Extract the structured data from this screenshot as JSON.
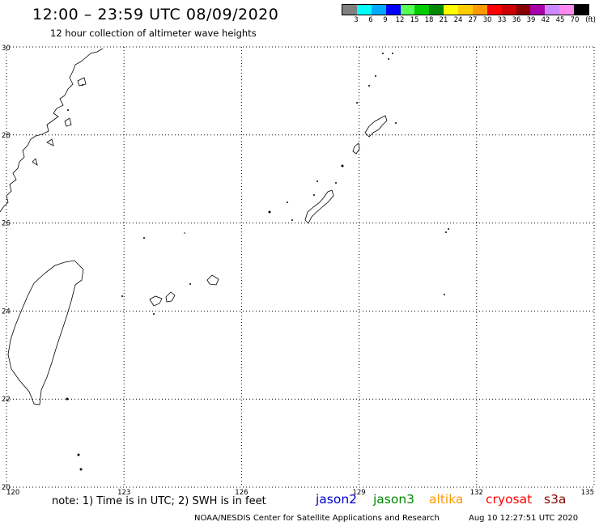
{
  "title": "12:00 – 23:59 UTC 08/09/2020",
  "subtitle": "12 hour collection of altimeter wave heights",
  "legend": {
    "colors": [
      "#808080",
      "#00ffff",
      "#00aaff",
      "#0000ff",
      "#55ff55",
      "#00cc00",
      "#008800",
      "#ffff00",
      "#ffcc00",
      "#ff9900",
      "#ff0000",
      "#cc0000",
      "#880000",
      "#aa00aa",
      "#cc88ff",
      "#ff88ee",
      "#000000"
    ],
    "labels": [
      "3",
      "6",
      "9",
      "12",
      "15",
      "18",
      "21",
      "24",
      "27",
      "30",
      "33",
      "36",
      "39",
      "42",
      "45",
      "70"
    ],
    "unit": "(ft)"
  },
  "map": {
    "lon_ticks": [
      "120",
      "123",
      "126",
      "129",
      "132",
      "135"
    ],
    "lat_ticks": [
      "30",
      "28",
      "26",
      "24",
      "22",
      "20"
    ],
    "lon_range": [
      120,
      135
    ],
    "lat_range": [
      20,
      30
    ],
    "grid": "dotted"
  },
  "note": "note: 1) Time is in UTC; 2) SWH is in feet",
  "satellites": [
    {
      "name": "jason2",
      "color": "#0000cc"
    },
    {
      "name": "jason3",
      "color": "#008800"
    },
    {
      "name": "altika",
      "color": "#ff9900"
    },
    {
      "name": "cryosat",
      "color": "#ff0000"
    },
    {
      "name": "s3a",
      "color": "#880000"
    }
  ],
  "footer": "NOAA/NESDIS Center for Satellite Applications and Research",
  "timestamp": "Aug 10 12:27:51 UTC 2020"
}
